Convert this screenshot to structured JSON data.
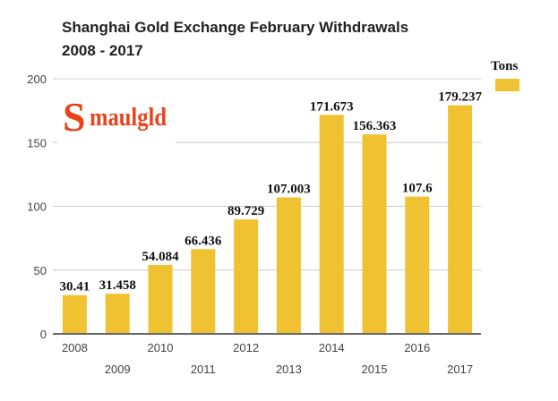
{
  "chart_data": {
    "type": "bar",
    "title_lines": [
      "Shanghai Gold Exchange February Withdrawals",
      "2008 - 2017"
    ],
    "categories": [
      "2008",
      "2009",
      "2010",
      "2011",
      "2012",
      "2013",
      "2014",
      "2015",
      "2016",
      "2017"
    ],
    "series": [
      {
        "name": "Tons",
        "color": "#f0c232",
        "values": [
          30.41,
          31.458,
          54.084,
          66.436,
          89.729,
          107.003,
          171.673,
          156.363,
          107.6,
          179.237
        ]
      }
    ],
    "data_labels": [
      "30.41",
      "31.458",
      "54.084",
      "66.436",
      "89.729",
      "107.003",
      "171.673",
      "156.363",
      "107.6",
      "179.237"
    ],
    "yticks": [
      "0",
      "50",
      "100",
      "150",
      "200"
    ],
    "ylim": [
      0,
      200
    ],
    "xlabel": "",
    "ylabel": "",
    "grid": true,
    "legend": "top-right"
  },
  "logo": {
    "text": "Smaulgld",
    "big": "S",
    "rest": "maulgld",
    "color": "#e8431a"
  },
  "colors": {
    "grid": "#cccccc",
    "axis": "#666666"
  }
}
